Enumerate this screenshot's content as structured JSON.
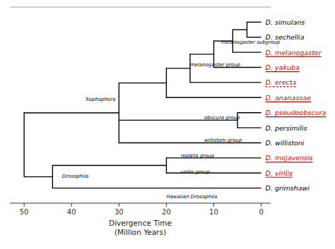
{
  "chart_data": {
    "type": "tree",
    "xlabel": "Divergence Time\n(Million Years)",
    "xlim": [
      53,
      -2
    ],
    "xticks": [
      50,
      40,
      30,
      20,
      10,
      0
    ],
    "ylim": [
      0,
      13
    ],
    "tick_labels": "x",
    "color": "#000000",
    "species": [
      "D. simulans",
      "D. sechellia",
      "D. melanogaster",
      "D. yakuba",
      "D. erecta",
      "D. ananassae",
      "D. pseudoobscura",
      "D. persimilis",
      "D. willistoni",
      "D. mojavensis",
      "D. virilis",
      "D. grimshawi"
    ],
    "species_y": [
      12,
      11,
      10,
      9,
      8,
      7,
      6,
      5,
      4,
      3,
      2,
      1
    ],
    "colors": [
      "#000000",
      "#000000",
      "#cc0000",
      "#cc0000",
      "#cc0000",
      "#cc0000",
      "#cc0000",
      "#000000",
      "#000000",
      "#cc0000",
      "#cc0000",
      "#000000"
    ],
    "underlined": [
      "D. melanogaster",
      "D. yakuba",
      "D. ananassae",
      "D. pseudoobscura",
      "D. mojavensis",
      "D. virilis"
    ],
    "dashed_underline": [
      "D. erecta"
    ],
    "tip_time": 0,
    "nodes": [
      {
        "time": 3,
        "children": [
          "D. simulans",
          "D. sechellia"
        ]
      },
      {
        "time": 6,
        "children": [
          0,
          "D. melanogaster"
        ]
      },
      {
        "time": 10,
        "children": [
          1,
          "D. yakuba"
        ]
      },
      {
        "time": 15,
        "children": [
          2,
          "D. erecta"
        ]
      },
      {
        "time": 20,
        "children": [
          3,
          "D. ananassae"
        ]
      },
      {
        "time": 5,
        "children": [
          "D. pseudoobscura",
          "D. persimilis"
        ]
      },
      {
        "time": 30,
        "children": [
          4,
          5,
          "D. willistoni"
        ]
      },
      {
        "time": 20,
        "children": [
          "D. mojavensis",
          "D. virilis"
        ]
      },
      {
        "time": 44,
        "children": [
          7,
          "D. grimshawi"
        ]
      },
      {
        "time": 50,
        "children": [
          6,
          8
        ]
      }
    ],
    "group_labels": [
      {
        "text": "melanogaster subgroup",
        "x": 8.5,
        "y": 10.8
      },
      {
        "text": "melanogaster group",
        "x": 15,
        "y": 9.3
      },
      {
        "text": "obscura group",
        "x": 12,
        "y": 5.8
      },
      {
        "text": "willistoni group",
        "x": 12,
        "y": 4.3
      },
      {
        "text": "repleta group",
        "x": 17,
        "y": 3.25
      },
      {
        "text": "virilis group",
        "x": 17,
        "y": 2.2
      },
      {
        "text": "Sophophora",
        "x": 37,
        "y": 7.0
      },
      {
        "text": "Drosophila",
        "x": 42,
        "y": 1.9
      },
      {
        "text": "Hawaiian Drosophila",
        "x": 20,
        "y": 0.55
      }
    ]
  }
}
